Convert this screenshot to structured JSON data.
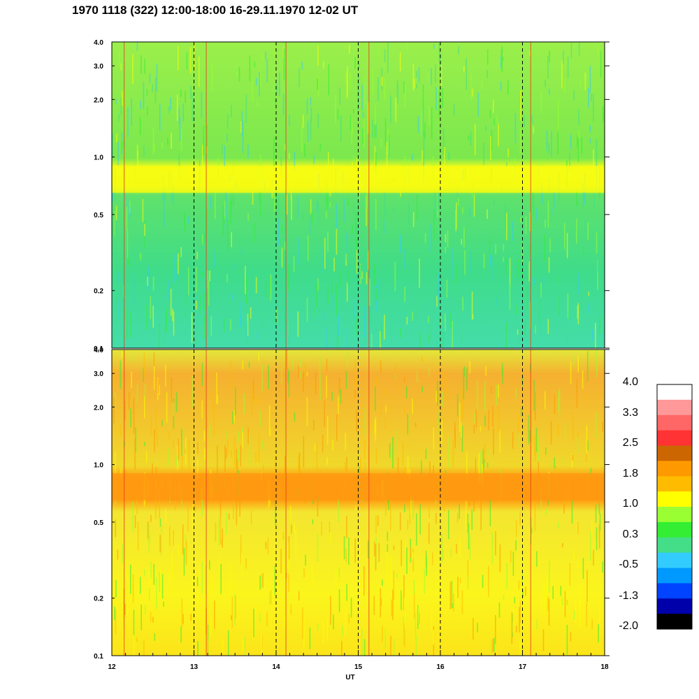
{
  "title": "1970 1118 (322) 12:00-18:00 16-29.11.1970  12-02 UT",
  "chart_data": [
    {
      "type": "heatmap",
      "panel": "top",
      "x": {
        "label": "UT",
        "range": [
          12,
          18
        ],
        "ticks": [
          "12",
          "13",
          "14",
          "15",
          "16",
          "17",
          "18"
        ]
      },
      "y": {
        "scale": "log",
        "range": [
          0.1,
          4.0
        ],
        "ticks": [
          "0.1",
          "0.2",
          "0.5",
          "1.0",
          "2.0",
          "3.0",
          "4.0"
        ]
      },
      "dominant_bands": [
        {
          "y_range": [
            0.1,
            0.65
          ],
          "level": 0.3
        },
        {
          "y_range": [
            0.65,
            0.9
          ],
          "level": 1.0
        },
        {
          "y_range": [
            0.9,
            4.0
          ],
          "level": 0.6
        }
      ],
      "vertical_markers_ut": [
        13,
        14,
        15,
        16,
        17
      ]
    },
    {
      "type": "heatmap",
      "panel": "bottom",
      "x": {
        "label": "UT",
        "range": [
          12,
          18
        ],
        "ticks": [
          "12",
          "13",
          "14",
          "15",
          "16",
          "17",
          "18"
        ]
      },
      "y": {
        "scale": "log",
        "range": [
          0.1,
          4.0
        ],
        "ticks": [
          "0.1",
          "0.2",
          "0.5",
          "1.0",
          "2.0",
          "3.0",
          "4.0"
        ]
      },
      "dominant_bands": [
        {
          "y_range": [
            0.1,
            0.65
          ],
          "level": 1.1
        },
        {
          "y_range": [
            0.65,
            0.9
          ],
          "level": 1.8
        },
        {
          "y_range": [
            0.9,
            4.0
          ],
          "level": 1.5
        }
      ],
      "vertical_markers_ut": [
        13,
        14,
        15,
        16,
        17
      ]
    }
  ],
  "colorbar": {
    "labels": [
      "4.0",
      "3.3",
      "2.5",
      "1.8",
      "1.0",
      "0.3",
      "-0.5",
      "-1.3",
      "-2.0"
    ],
    "colors": [
      "#ffffff",
      "#ff9999",
      "#ff6666",
      "#ff3333",
      "#cc6600",
      "#ff9900",
      "#ffbb00",
      "#ffff00",
      "#99ff33",
      "#33ee33",
      "#44dd88",
      "#33ccff",
      "#0099ff",
      "#0044ff",
      "#0000aa",
      "#000000"
    ]
  },
  "xlabel": "UT"
}
